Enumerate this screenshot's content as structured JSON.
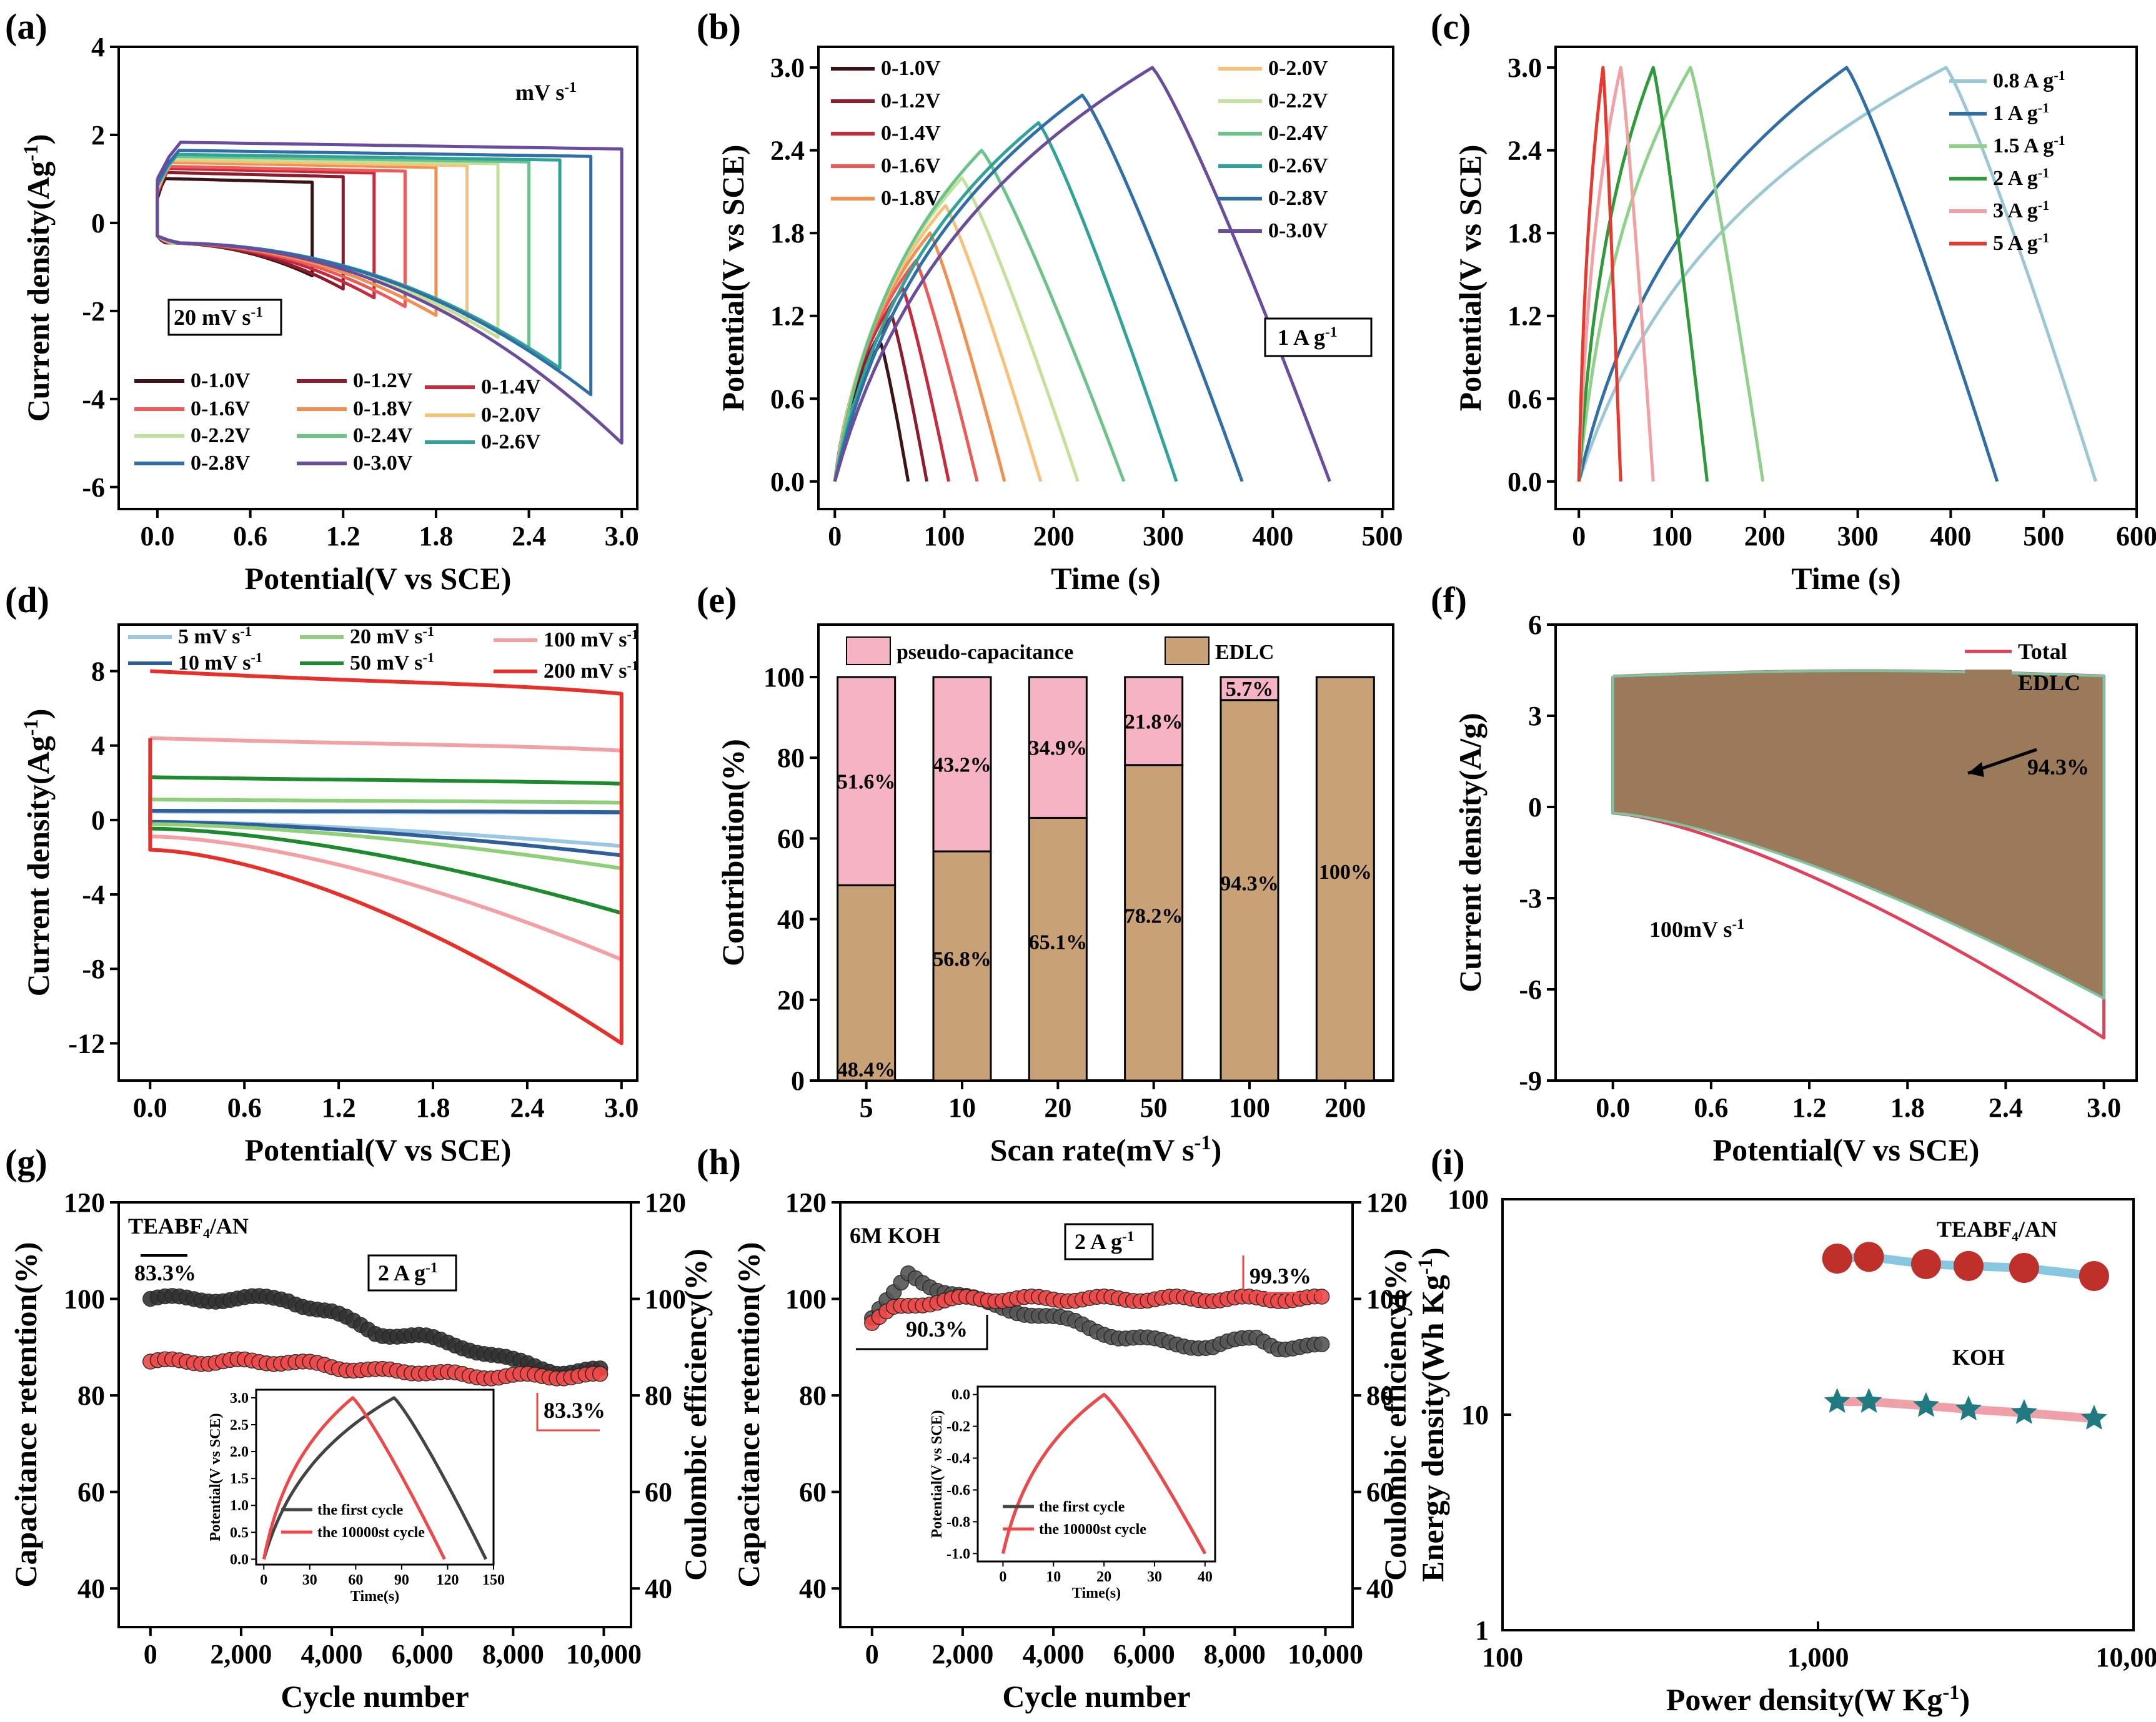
{
  "panels": {
    "a": "(a)",
    "b": "(b)",
    "c": "(c)",
    "d": "(d)",
    "e": "(e)",
    "f": "(f)",
    "g": "(g)",
    "h": "(h)",
    "i": "(i)"
  },
  "chart_data": [
    {
      "id": "a",
      "type": "line",
      "xlabel": "Potential(V vs SCE)",
      "ylabel": "Current density(Ag⁻¹)",
      "xlim": [
        -0.25,
        3.1
      ],
      "ylim": [
        -6.5,
        4
      ],
      "xticks": [
        "0.0",
        "0.6",
        "1.2",
        "1.8",
        "2.4",
        "3.0"
      ],
      "xtick_values": [
        0,
        0.6,
        1.2,
        1.8,
        2.4,
        3.0
      ],
      "yticks": [
        "4",
        "2",
        "0",
        "-2",
        "-4",
        "-6"
      ],
      "ytick_values": [
        4,
        2,
        0,
        -2,
        -4,
        -6
      ],
      "annotations": [
        "mV s⁻¹",
        "20 mV s⁻¹"
      ],
      "series": [
        {
          "name": "0-1.0V",
          "vmax": 1.0,
          "color": "#3b1216",
          "top": 1.1,
          "bottom": -1.2
        },
        {
          "name": "0-1.2V",
          "vmax": 1.2,
          "color": "#8c1b2c",
          "top": 1.25,
          "bottom": -1.5
        },
        {
          "name": "0-1.4V",
          "vmax": 1.4,
          "color": "#c62a3c",
          "top": 1.35,
          "bottom": -1.7
        },
        {
          "name": "0-1.6V",
          "vmax": 1.6,
          "color": "#ee5a5a",
          "top": 1.4,
          "bottom": -1.9
        },
        {
          "name": "0-1.8V",
          "vmax": 1.8,
          "color": "#f29050",
          "top": 1.5,
          "bottom": -2.1
        },
        {
          "name": "0-2.0V",
          "vmax": 2.0,
          "color": "#f6c27a",
          "top": 1.55,
          "bottom": -2.3
        },
        {
          "name": "0-2.2V",
          "vmax": 2.2,
          "color": "#c3e19a",
          "top": 1.6,
          "bottom": -2.6
        },
        {
          "name": "0-2.4V",
          "vmax": 2.4,
          "color": "#6cc38a",
          "top": 1.65,
          "bottom": -2.9
        },
        {
          "name": "0-2.6V",
          "vmax": 2.6,
          "color": "#2fa39a",
          "top": 1.7,
          "bottom": -3.3
        },
        {
          "name": "0-2.8V",
          "vmax": 2.8,
          "color": "#2f6ea6",
          "top": 1.8,
          "bottom": -3.9
        },
        {
          "name": "0-3.0V",
          "vmax": 3.0,
          "color": "#6a4c9c",
          "top": 2.0,
          "bottom": -5.0
        }
      ]
    },
    {
      "id": "b",
      "type": "line",
      "xlabel": "Time (s)",
      "ylabel": "Potential(V vs SCE)",
      "xlim": [
        -15,
        510
      ],
      "ylim": [
        -0.2,
        3.15
      ],
      "xticks": [
        "0",
        "100",
        "200",
        "300",
        "400",
        "500"
      ],
      "xtick_values": [
        0,
        100,
        200,
        300,
        400,
        500
      ],
      "yticks": [
        "0.0",
        "0.6",
        "1.2",
        "1.8",
        "2.4",
        "3.0"
      ],
      "ytick_values": [
        0,
        0.6,
        1.2,
        1.8,
        2.4,
        3.0
      ],
      "annotations": [
        "1 A g⁻¹"
      ],
      "series": [
        {
          "name": "0-1.0V",
          "vmax": 1.0,
          "t_peak": 42,
          "t_end": 67,
          "color": "#3b1216"
        },
        {
          "name": "0-1.2V",
          "vmax": 1.2,
          "t_peak": 52,
          "t_end": 84,
          "color": "#8c1b2c"
        },
        {
          "name": "0-1.4V",
          "vmax": 1.4,
          "t_peak": 62,
          "t_end": 104,
          "color": "#c62a3c"
        },
        {
          "name": "0-1.6V",
          "vmax": 1.6,
          "t_peak": 74,
          "t_end": 130,
          "color": "#ee5a5a"
        },
        {
          "name": "0-1.8V",
          "vmax": 1.8,
          "t_peak": 87,
          "t_end": 155,
          "color": "#f29050"
        },
        {
          "name": "0-2.0V",
          "vmax": 2.0,
          "t_peak": 101,
          "t_end": 188,
          "color": "#f6c27a"
        },
        {
          "name": "0-2.2V",
          "vmax": 2.2,
          "t_peak": 116,
          "t_end": 222,
          "color": "#c3e19a"
        },
        {
          "name": "0-2.4V",
          "vmax": 2.4,
          "t_peak": 134,
          "t_end": 264,
          "color": "#6cc38a"
        },
        {
          "name": "0-2.6V",
          "vmax": 2.6,
          "t_peak": 186,
          "t_end": 312,
          "color": "#2fa39a"
        },
        {
          "name": "0-2.8V",
          "vmax": 2.8,
          "t_peak": 226,
          "t_end": 372,
          "color": "#2f6ea6"
        },
        {
          "name": "0-3.0V",
          "vmax": 3.0,
          "t_peak": 290,
          "t_end": 452,
          "color": "#6a4c9c"
        }
      ]
    },
    {
      "id": "c",
      "type": "line",
      "xlabel": "Time (s)",
      "ylabel": "Potential(V vs SCE)",
      "xlim": [
        -25,
        600
      ],
      "ylim": [
        -0.2,
        3.15
      ],
      "xticks": [
        "0",
        "100",
        "200",
        "300",
        "400",
        "500",
        "600"
      ],
      "xtick_values": [
        0,
        100,
        200,
        300,
        400,
        500,
        600
      ],
      "yticks": [
        "0.0",
        "0.6",
        "1.2",
        "1.8",
        "2.4",
        "3.0"
      ],
      "ytick_values": [
        0,
        0.6,
        1.2,
        1.8,
        2.4,
        3.0
      ],
      "series": [
        {
          "name": "0.8 A g⁻¹",
          "t_peak": 395,
          "t_end": 556,
          "color": "#9cc7d5"
        },
        {
          "name": "1 A g⁻¹",
          "t_peak": 288,
          "t_end": 450,
          "color": "#2f6ea6"
        },
        {
          "name": "1.5 A g⁻¹",
          "t_peak": 120,
          "t_end": 198,
          "color": "#8fd18a"
        },
        {
          "name": "2 A g⁻¹",
          "t_peak": 80,
          "t_end": 138,
          "color": "#2e9a3a"
        },
        {
          "name": "3 A g⁻¹",
          "t_peak": 45,
          "t_end": 80,
          "color": "#f2a0a4"
        },
        {
          "name": "5 A g⁻¹",
          "t_peak": 26,
          "t_end": 45,
          "color": "#e8382f"
        }
      ]
    },
    {
      "id": "d",
      "type": "line",
      "xlabel": "Potential(V vs SCE)",
      "ylabel": "Current density(Ag⁻¹)",
      "xlim": [
        -0.2,
        3.1
      ],
      "ylim": [
        -14,
        10.5
      ],
      "xticks": [
        "0.0",
        "0.6",
        "1.2",
        "1.8",
        "2.4",
        "3.0"
      ],
      "xtick_values": [
        0,
        0.6,
        1.2,
        1.8,
        2.4,
        3.0
      ],
      "yticks": [
        "8",
        "4",
        "0",
        "-4",
        "-8",
        "-12"
      ],
      "ytick_values": [
        8,
        4,
        0,
        -4,
        -8,
        -12
      ],
      "series": [
        {
          "name": "5 mV s⁻¹",
          "color": "#9cc7e2",
          "top": 0.45,
          "bottom": -1.4
        },
        {
          "name": "10 mV s⁻¹",
          "color": "#2f5f9a",
          "top": 0.5,
          "bottom": -1.9
        },
        {
          "name": "20 mV s⁻¹",
          "color": "#8fcf7a",
          "top": 1.1,
          "bottom": -2.6
        },
        {
          "name": "50 mV s⁻¹",
          "color": "#1e8a2e",
          "top": 2.3,
          "bottom": -5.0
        },
        {
          "name": "100 mV s⁻¹",
          "color": "#f2a0a4",
          "top": 4.4,
          "bottom": -7.5
        },
        {
          "name": "200 mV s⁻¹",
          "color": "#e8302a",
          "top": 8.0,
          "bottom": -12.0
        }
      ]
    },
    {
      "id": "e",
      "type": "bar",
      "xlabel": "Scan rate(mV s⁻¹)",
      "ylabel": "Contribution(%)",
      "ylim": [
        0,
        113
      ],
      "categories": [
        "5",
        "10",
        "20",
        "50",
        "100",
        "200"
      ],
      "yticks": [
        "0",
        "20",
        "40",
        "60",
        "80",
        "100"
      ],
      "ytick_values": [
        0,
        20,
        40,
        60,
        80,
        100
      ],
      "series": [
        {
          "name": "EDLC",
          "values": [
            48.4,
            56.8,
            65.1,
            78.2,
            94.3,
            100
          ],
          "labels": [
            "48.4%",
            "56.8%",
            "65.1%",
            "78.2%",
            "94.3%",
            "100%"
          ],
          "color": "#c8a176"
        },
        {
          "name": "pseudo-capacitance",
          "values": [
            51.6,
            43.2,
            34.9,
            21.8,
            5.7,
            0
          ],
          "labels": [
            "51.6%",
            "43.2%",
            "34.9%",
            "21.8%",
            "5.7%",
            ""
          ],
          "color": "#f6b3c3"
        }
      ]
    },
    {
      "id": "f",
      "type": "area",
      "xlabel": "Potential(V vs SCE)",
      "ylabel": "Current density(A/g)",
      "xlim": [
        -0.35,
        3.2
      ],
      "ylim": [
        -9,
        6
      ],
      "xticks": [
        "0.0",
        "0.6",
        "1.2",
        "1.8",
        "2.4",
        "3.0"
      ],
      "xtick_values": [
        0,
        0.6,
        1.2,
        1.8,
        2.4,
        3.0
      ],
      "yticks": [
        "6",
        "3",
        "0",
        "-3",
        "-6",
        "-9"
      ],
      "ytick_values": [
        6,
        3,
        0,
        -3,
        -6,
        -9
      ],
      "annotations": [
        "94.3%",
        "100mV s⁻¹"
      ],
      "series": [
        {
          "name": "Total",
          "color": "#e0405a"
        },
        {
          "name": "EDLC",
          "color": "#9a7a5a"
        }
      ]
    },
    {
      "id": "g",
      "type": "scatter",
      "xlabel": "Cycle number",
      "ylabel": "Capacitance retention(%)",
      "y2label": "Coulombic efficiency(%)",
      "xlim": [
        -700,
        10600
      ],
      "ylim": [
        32,
        120
      ],
      "xticks": [
        "0",
        "2,000",
        "4,000",
        "6,000",
        "8,000",
        "10,000"
      ],
      "xtick_values": [
        0,
        2000,
        4000,
        6000,
        8000,
        10000
      ],
      "yticks": [
        "120",
        "100",
        "80",
        "60",
        "40"
      ],
      "ytick_values": [
        120,
        100,
        80,
        60,
        40
      ],
      "annotations": [
        "TEABF₄/AN",
        "83.3%",
        "2 A g⁻¹",
        "83.3%"
      ],
      "retention": {
        "x": [
          0,
          1000,
          2000,
          3000,
          4000,
          5000,
          6000,
          7000,
          8000,
          9000,
          10000
        ],
        "y": [
          100,
          100,
          100,
          100,
          97,
          93,
          92,
          90,
          87,
          85,
          85
        ],
        "color": "#333333"
      },
      "efficiency": {
        "x": [
          0,
          1000,
          2000,
          3000,
          4000,
          5000,
          6000,
          7000,
          8000,
          9000,
          10000
        ],
        "y": [
          87,
          87,
          87,
          87,
          86,
          85,
          85,
          84,
          84,
          84,
          84
        ],
        "color": "#f04848"
      },
      "inset": {
        "xlabel": "Time(s)",
        "ylabel": "Potential(V vs SCE)",
        "xticks": [
          "0",
          "30",
          "60",
          "90",
          "120",
          "150"
        ],
        "xtick_values": [
          0,
          30,
          60,
          90,
          120,
          150
        ],
        "yticks": [
          "0.0",
          "0.5",
          "1.0",
          "1.5",
          "2.0",
          "2.5",
          "3.0"
        ],
        "ytick_values": [
          0,
          0.5,
          1,
          1.5,
          2,
          2.5,
          3
        ],
        "legend": [
          "the first cycle",
          "the 10000st cycle"
        ],
        "first": {
          "t_peak": 85,
          "t_end": 145,
          "color": "#444444"
        },
        "last": {
          "t_peak": 58,
          "t_end": 118,
          "color": "#f04848"
        }
      }
    },
    {
      "id": "h",
      "type": "scatter",
      "xlabel": "Cycle number",
      "ylabel": "Capacitance retention(%)",
      "y2label": "Coulombic efficiency(%)",
      "xlim": [
        -700,
        10600
      ],
      "ylim": [
        32,
        120
      ],
      "xticks": [
        "0",
        "2,000",
        "4,000",
        "6,000",
        "8,000",
        "10,000"
      ],
      "xtick_values": [
        0,
        2000,
        4000,
        6000,
        8000,
        10000
      ],
      "yticks": [
        "120",
        "100",
        "80",
        "60",
        "40"
      ],
      "ytick_values": [
        120,
        100,
        80,
        60,
        40
      ],
      "annotations": [
        "6M KOH",
        "2 A g⁻¹",
        "99.3%",
        "90.3%"
      ],
      "retention": {
        "x": [
          0,
          500,
          800,
          1500,
          2500,
          3500,
          4500,
          5500,
          6500,
          7500,
          8500,
          9000,
          10000
        ],
        "y": [
          96,
          101,
          105,
          102,
          99,
          97,
          95,
          92,
          91,
          90,
          92,
          90,
          90
        ],
        "color": "#555555"
      },
      "efficiency": {
        "x": [
          0,
          500,
          1000,
          2000,
          3000,
          4000,
          5000,
          6000,
          7000,
          8000,
          9000,
          10000
        ],
        "y": [
          95,
          98,
          99,
          100,
          100,
          100,
          100,
          100,
          100,
          100,
          100,
          100
        ],
        "color": "#f04848"
      },
      "inset": {
        "xlabel": "Time(s)",
        "ylabel": "Potential(V vs SCE)",
        "xticks": [
          "0",
          "10",
          "20",
          "30",
          "40"
        ],
        "xtick_values": [
          0,
          10,
          20,
          30,
          40
        ],
        "yticks": [
          "0.0",
          "-0.2",
          "-0.4",
          "-0.6",
          "-0.8",
          "-1.0"
        ],
        "ytick_values": [
          0,
          -0.2,
          -0.4,
          -0.6,
          -0.8,
          -1.0
        ],
        "legend": [
          "the first cycle",
          "the 10000st cycle"
        ],
        "first": {
          "t_peak": 20,
          "t_end": 40,
          "color": "#444444"
        },
        "last": {
          "t_peak": 20,
          "t_end": 40,
          "color": "#f04848"
        }
      }
    },
    {
      "id": "i",
      "type": "scatter",
      "xlabel": "Power density(W Kg⁻¹)",
      "ylabel": "Energy density(Wh Kg⁻¹)",
      "xscale": "log",
      "yscale": "log",
      "xlim": [
        100,
        10000
      ],
      "ylim": [
        1,
        100
      ],
      "xticks": [
        "100",
        "1,000",
        "10,000"
      ],
      "xtick_values": [
        100,
        1000,
        10000
      ],
      "yticks": [
        "100",
        "10",
        "1"
      ],
      "ytick_values": [
        100,
        10,
        1
      ],
      "series": [
        {
          "name": "TEABF₄/AN",
          "x": [
            1150,
            1450,
            2200,
            3000,
            4500,
            7500
          ],
          "y": [
            53,
            54,
            50,
            49,
            48,
            44
          ],
          "color": "#c0302a",
          "line": "#87c8e0"
        },
        {
          "name": "KOH",
          "x": [
            1150,
            1450,
            2200,
            3000,
            4500,
            7500
          ],
          "y": [
            11.5,
            11.5,
            11,
            10.6,
            10.2,
            9.6
          ],
          "color": "#1f7a82",
          "line": "#f0a0a8"
        }
      ]
    }
  ]
}
